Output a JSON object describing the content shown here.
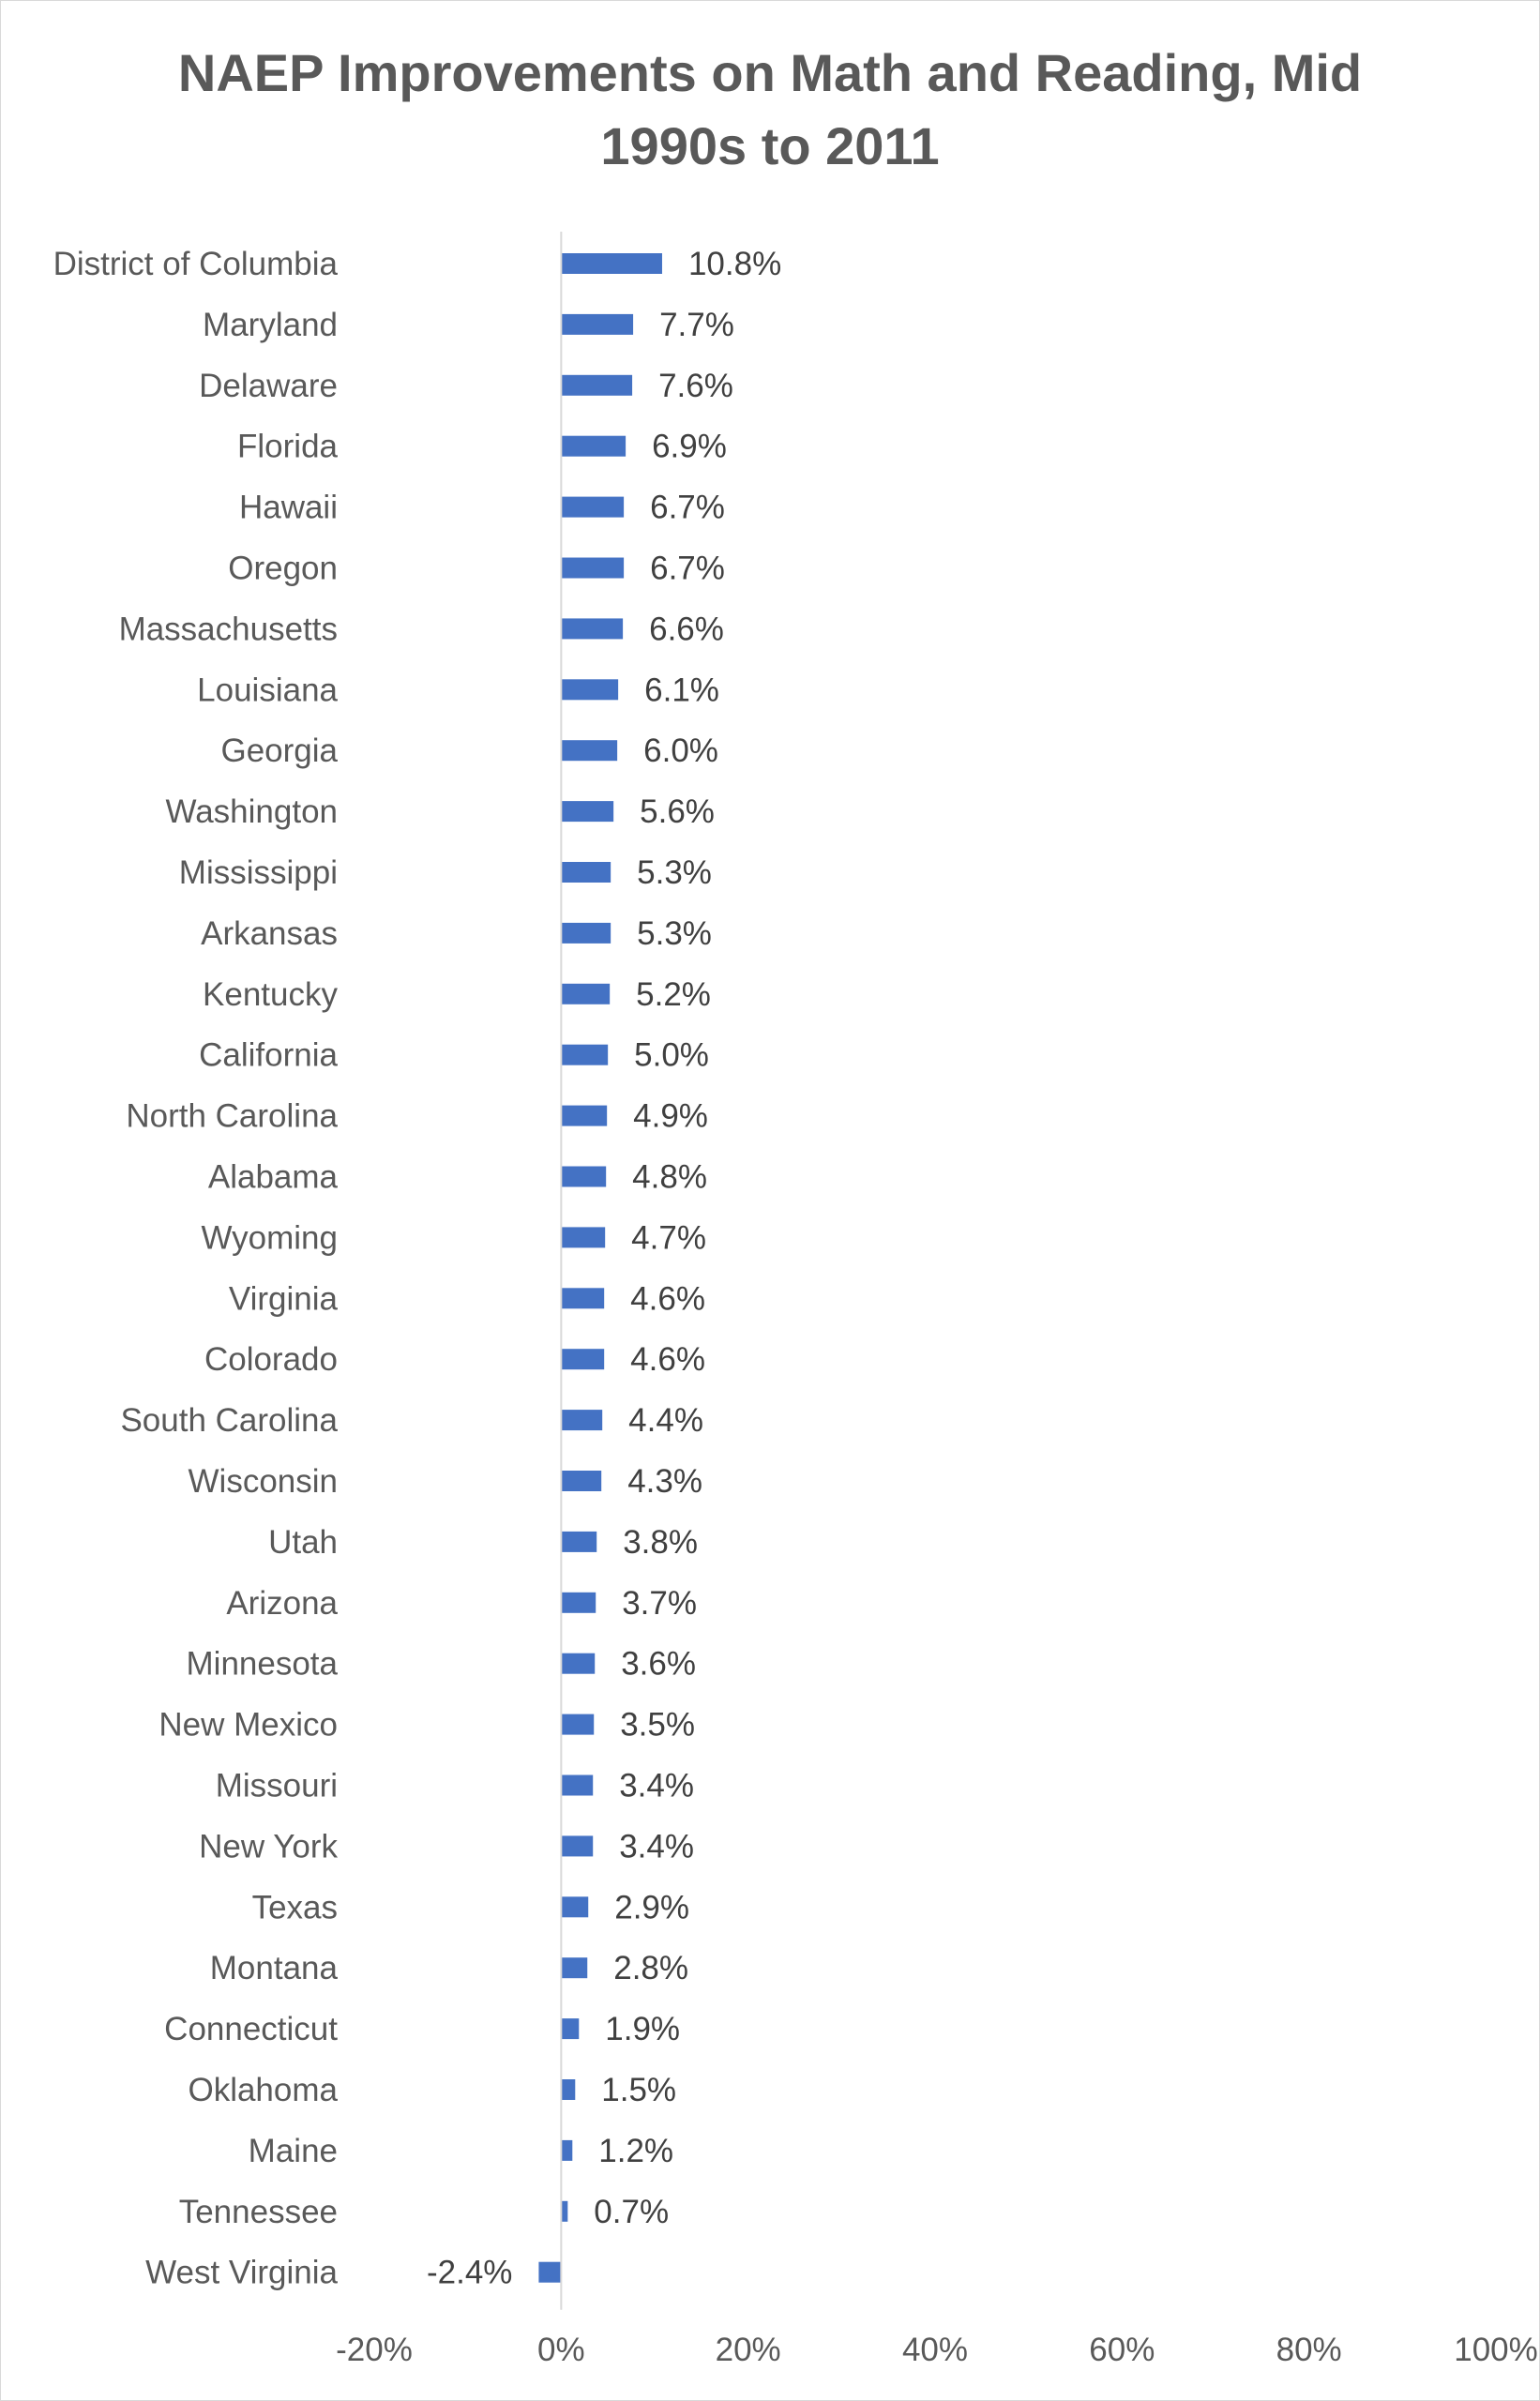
{
  "chart_data": {
    "type": "bar",
    "orientation": "horizontal",
    "title": "NAEP Improvements on Math and Reading, Mid 1990s to 2011",
    "categories": [
      "District of Columbia",
      "Maryland",
      "Delaware",
      "Florida",
      "Hawaii",
      "Oregon",
      "Massachusetts",
      "Louisiana",
      "Georgia",
      "Washington",
      "Mississippi",
      "Arkansas",
      "Kentucky",
      "California",
      "North Carolina",
      "Alabama",
      "Wyoming",
      "Virginia",
      "Colorado",
      "South Carolina",
      "Wisconsin",
      "Utah",
      "Arizona",
      "Minnesota",
      "New Mexico",
      "Missouri",
      "New York",
      "Texas",
      "Montana",
      "Connecticut",
      "Oklahoma",
      "Maine",
      "Tennessee",
      "West Virginia"
    ],
    "values": [
      10.8,
      7.7,
      7.6,
      6.9,
      6.7,
      6.7,
      6.6,
      6.1,
      6.0,
      5.6,
      5.3,
      5.3,
      5.2,
      5.0,
      4.9,
      4.8,
      4.7,
      4.6,
      4.6,
      4.4,
      4.3,
      3.8,
      3.7,
      3.6,
      3.5,
      3.4,
      3.4,
      2.9,
      2.8,
      1.9,
      1.5,
      1.2,
      0.7,
      -2.4
    ],
    "data_labels": [
      "10.8%",
      "7.7%",
      "7.6%",
      "6.9%",
      "6.7%",
      "6.7%",
      "6.6%",
      "6.1%",
      "6.0%",
      "5.6%",
      "5.3%",
      "5.3%",
      "5.2%",
      "5.0%",
      "4.9%",
      "4.8%",
      "4.7%",
      "4.6%",
      "4.6%",
      "4.4%",
      "4.3%",
      "3.8%",
      "3.7%",
      "3.6%",
      "3.5%",
      "3.4%",
      "3.4%",
      "2.9%",
      "2.8%",
      "1.9%",
      "1.5%",
      "1.2%",
      "0.7%",
      "-2.4%"
    ],
    "xlim": [
      -20,
      100
    ],
    "x_ticks": [
      -20,
      0,
      20,
      40,
      60,
      80,
      100
    ],
    "x_tick_labels": [
      "-20%",
      "0%",
      "20%",
      "40%",
      "60%",
      "80%",
      "100%"
    ],
    "xlabel": "",
    "ylabel": "",
    "grid": false,
    "legend": "none",
    "bar_color": "#4472c4"
  }
}
